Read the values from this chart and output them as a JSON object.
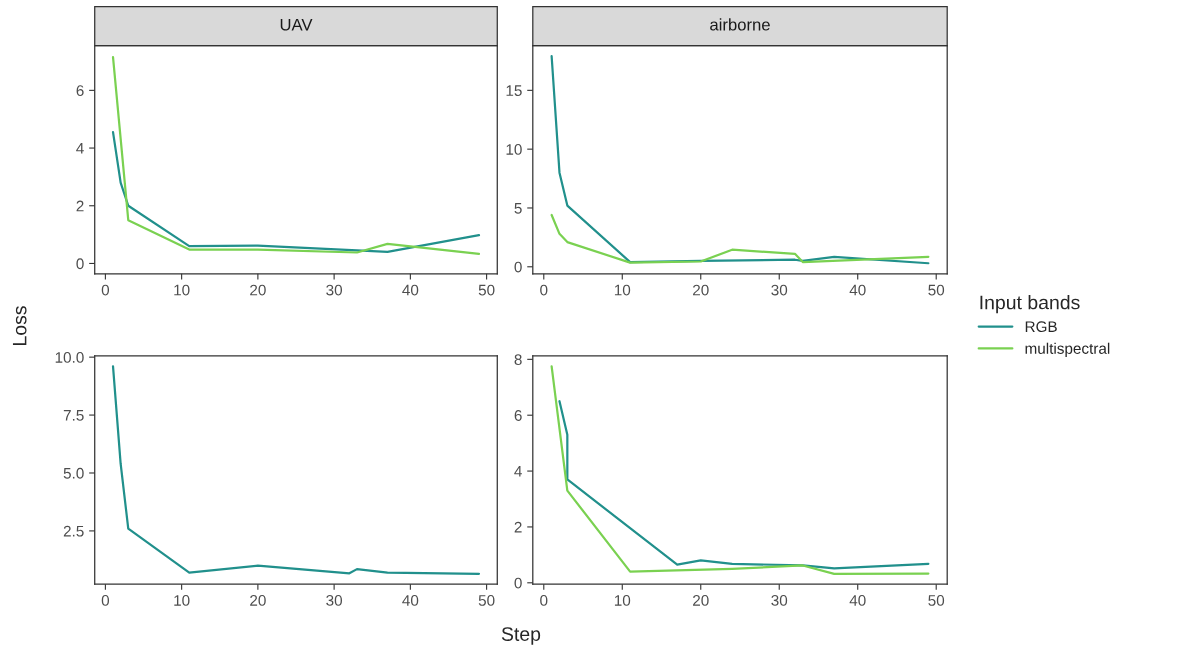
{
  "chart_data": [
    {
      "type": "line",
      "title": "UAV",
      "ylabel": "Loss",
      "legend": "right",
      "legend_title": "Input bands",
      "xlim": [
        -1.4,
        51.4
      ],
      "xticks": [
        0,
        10,
        20,
        30,
        40,
        50
      ],
      "ylim": [
        -0.36,
        7.55
      ],
      "yticks": [
        0,
        2,
        4,
        6
      ],
      "series": [
        {
          "name": "RGB",
          "color": "#21908c",
          "x": [
            1,
            2,
            3,
            11,
            20,
            33,
            37,
            49
          ],
          "values": [
            4.55,
            2.8,
            2.0,
            0.6,
            0.62,
            0.45,
            0.4,
            0.98
          ]
        },
        {
          "name": "multispectral",
          "color": "#7ad151",
          "x": [
            1,
            3,
            11,
            20,
            33,
            37,
            49
          ],
          "values": [
            7.15,
            1.5,
            0.48,
            0.48,
            0.38,
            0.68,
            0.33
          ]
        }
      ]
    },
    {
      "type": "line",
      "title": "airborne",
      "xlim": [
        -1.4,
        51.4
      ],
      "xticks": [
        0,
        10,
        20,
        30,
        40,
        50
      ],
      "ylim": [
        -0.6,
        18.8
      ],
      "yticks": [
        0,
        5,
        10,
        15
      ],
      "series": [
        {
          "name": "RGB",
          "color": "#21908c",
          "x": [
            1,
            2,
            3,
            11,
            20,
            32,
            33,
            37,
            49
          ],
          "values": [
            17.9,
            8.0,
            5.2,
            0.4,
            0.5,
            0.6,
            0.5,
            0.85,
            0.3
          ]
        },
        {
          "name": "multispectral",
          "color": "#7ad151",
          "x": [
            1,
            2,
            3,
            11,
            20,
            24,
            32,
            33,
            49
          ],
          "values": [
            4.4,
            2.8,
            2.1,
            0.35,
            0.45,
            1.45,
            1.1,
            0.4,
            0.85
          ]
        }
      ]
    },
    {
      "type": "line",
      "xlim": [
        -1.4,
        51.4
      ],
      "xticks": [
        0,
        10,
        20,
        30,
        40,
        50
      ],
      "ylim": [
        0.2,
        10.05
      ],
      "yticks": [
        {
          "value": 2.5,
          "label": "2.5"
        },
        {
          "value": 5,
          "label": "5.0"
        },
        {
          "value": 7.5,
          "label": "7.5"
        },
        {
          "value": 10,
          "label": "10.0"
        }
      ],
      "series": [
        {
          "name": "RGB",
          "color": "#21908c",
          "x": [
            1,
            2,
            3,
            11,
            20,
            32,
            33,
            37,
            49
          ],
          "values": [
            9.6,
            5.4,
            2.6,
            0.7,
            1.0,
            0.67,
            0.85,
            0.7,
            0.65
          ]
        }
      ]
    },
    {
      "type": "line",
      "xlabel": "Step",
      "xlim": [
        -1.4,
        51.4
      ],
      "xticks": [
        0,
        10,
        20,
        30,
        40,
        50
      ],
      "ylim": [
        -0.05,
        8.12
      ],
      "yticks": [
        0,
        2,
        4,
        6,
        8
      ],
      "series": [
        {
          "name": "RGB",
          "color": "#21908c",
          "x": [
            2,
            3,
            3,
            17,
            20,
            24,
            33,
            37,
            49
          ],
          "values": [
            6.5,
            5.3,
            3.7,
            0.65,
            0.8,
            0.68,
            0.62,
            0.52,
            0.68
          ]
        },
        {
          "name": "multispectral",
          "color": "#7ad151",
          "x": [
            1,
            3,
            11,
            24,
            33,
            37,
            49
          ],
          "values": [
            7.75,
            3.3,
            0.4,
            0.5,
            0.62,
            0.32,
            0.33
          ]
        }
      ]
    }
  ]
}
